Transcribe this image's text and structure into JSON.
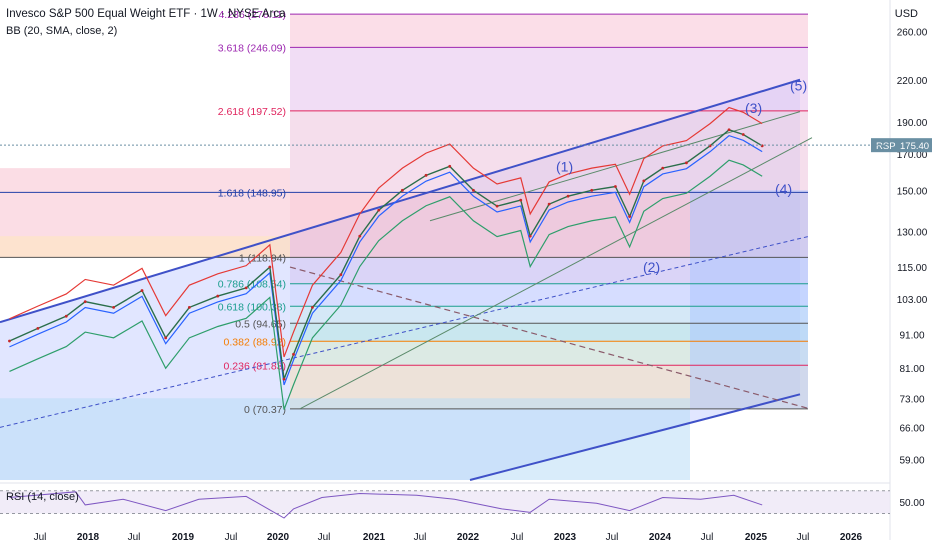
{
  "header": {
    "title": "Invesco S&P 500 Equal Weight ETF · 1W · NYSE Arca",
    "indicator": "BB (20, SMA, close, 2)",
    "currency": "USD"
  },
  "rsi_label": "RSI (14, close)",
  "price_badge": {
    "symbol": "RSP",
    "price": "175.40",
    "value": 175.4
  },
  "colors": {
    "background": "#ffffff",
    "channel": "#3f51c8",
    "bb_upper": "#e53935",
    "bb_lower": "#2e9e6b",
    "bb_basis": "#2962ff",
    "fib_magenta": "#9c27b0",
    "fib_red": "#e0245e",
    "badge": "#6a8fa3"
  },
  "chart_data": {
    "type": "line",
    "title": "Invesco S&P 500 Equal Weight ETF · 1W · NYSE Arca",
    "x_ticks": [
      "Jul",
      "2018",
      "Jul",
      "2019",
      "Jul",
      "2020",
      "Jul",
      "2021",
      "Jul",
      "2022",
      "Jul",
      "2023",
      "Jul",
      "2024",
      "Jul",
      "2025",
      "Jul",
      "2026"
    ],
    "y_ticks": [
      260.0,
      220.0,
      190.0,
      170.0,
      150.0,
      130.0,
      115.0,
      103.0,
      91.0,
      81.0,
      73.0,
      66.0,
      59.0
    ],
    "y_scale": "log",
    "ylim": [
      55,
      290
    ],
    "xlim": [
      2017.2,
      2026.6
    ],
    "fib_levels": [
      {
        "label": "4.236 (276.11)",
        "ratio": 4.236,
        "value": 276.11
      },
      {
        "label": "3.618 (246.09)",
        "ratio": 3.618,
        "value": 246.09
      },
      {
        "label": "2.618 (197.52)",
        "ratio": 2.618,
        "value": 197.52
      },
      {
        "label": "1.618 (148.95)",
        "ratio": 1.618,
        "value": 148.95
      },
      {
        "label": "1 (118.94)",
        "ratio": 1,
        "value": 118.94
      },
      {
        "label": "0.786 (108.54)",
        "ratio": 0.786,
        "value": 108.54
      },
      {
        "label": "0.618 (100.38)",
        "ratio": 0.618,
        "value": 100.38
      },
      {
        "label": "0.5 (94.65)",
        "ratio": 0.5,
        "value": 94.65
      },
      {
        "label": "0.382 (88.92)",
        "ratio": 0.382,
        "value": 88.92
      },
      {
        "label": "0.236 (81.83)",
        "ratio": 0.236,
        "value": 81.83
      },
      {
        "label": "0 (70.37)",
        "ratio": 0,
        "value": 70.37
      }
    ],
    "wave_labels": [
      "(1)",
      "(2)",
      "(3)",
      "(4)",
      "(5)"
    ],
    "price_series": {
      "x": [
        2017.3,
        2017.6,
        2017.9,
        2018.1,
        2018.4,
        2018.7,
        2018.95,
        2019.2,
        2019.5,
        2019.8,
        2020.05,
        2020.2,
        2020.3,
        2020.5,
        2020.8,
        2021.0,
        2021.2,
        2021.45,
        2021.7,
        2021.95,
        2022.2,
        2022.45,
        2022.7,
        2022.8,
        2023.0,
        2023.2,
        2023.45,
        2023.7,
        2023.85,
        2024.0,
        2024.2,
        2024.45,
        2024.7,
        2024.9,
        2025.05,
        2025.25
      ],
      "y": [
        89,
        93,
        97,
        102,
        100,
        106,
        90,
        100,
        104,
        107,
        115,
        78,
        85,
        100,
        112,
        128,
        140,
        150,
        158,
        163,
        150,
        142,
        145,
        128,
        143,
        147,
        150,
        152,
        137,
        155,
        162,
        165,
        175,
        185,
        182,
        175
      ]
    },
    "rsi_series": {
      "x": [
        2017.3,
        2018.0,
        2018.1,
        2018.5,
        2018.95,
        2019.3,
        2019.8,
        2020.2,
        2020.3,
        2020.6,
        2021.0,
        2021.6,
        2022.0,
        2022.5,
        2022.8,
        2023.0,
        2023.5,
        2023.85,
        2024.2,
        2024.6,
        2024.95,
        2025.25
      ],
      "y": [
        58,
        68,
        45,
        55,
        35,
        55,
        60,
        22,
        38,
        58,
        65,
        62,
        55,
        38,
        32,
        55,
        48,
        35,
        58,
        55,
        62,
        45
      ],
      "ylim": [
        15,
        80
      ],
      "y_ticks": [
        50.0
      ]
    }
  }
}
